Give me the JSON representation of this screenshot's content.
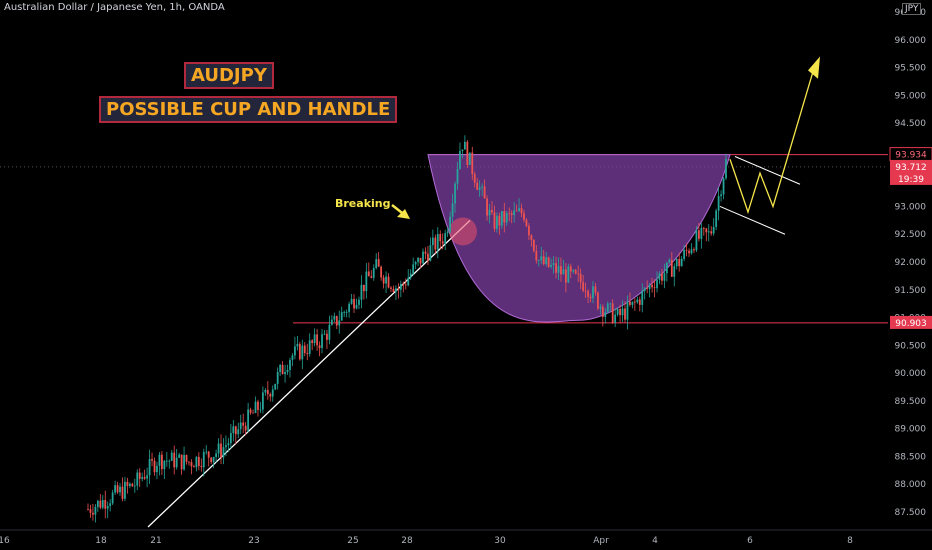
{
  "header": {
    "title": "Australian Dollar / Japanese Yen, 1h, OANDA"
  },
  "currency_badge": "JPY",
  "annotations": {
    "title_box": "AUDJPY",
    "subtitle_box": "POSSIBLE CUP AND HANDLE",
    "breaking_label": "Breaking"
  },
  "price_badges": {
    "resistance": "93.934",
    "current": "93.712",
    "countdown": "19:39",
    "support": "90.903"
  },
  "colors": {
    "up": "#26a69a",
    "down": "#ef5350",
    "cup_fill": "#7b3fa0",
    "level_line": "#e53950",
    "projection": "#f5e54a",
    "trendline": "#ffffff"
  },
  "chart_data": {
    "type": "candlestick",
    "y_axis": {
      "ticks": [
        "96.500",
        "96.000",
        "95.500",
        "95.000",
        "94.500",
        "93.000",
        "92.500",
        "92.000",
        "91.500",
        "91.000",
        "90.500",
        "90.000",
        "89.500",
        "89.000",
        "88.500",
        "88.000",
        "87.500"
      ],
      "range": [
        87.3,
        96.7
      ]
    },
    "x_axis": {
      "ticks": [
        "16",
        "18",
        "21",
        "23",
        "25",
        "28",
        "30",
        "Apr",
        "4",
        "6",
        "8"
      ]
    },
    "levels": {
      "resistance": 93.934,
      "support": 90.903
    },
    "price_path": [
      [
        0,
        87.55
      ],
      [
        0.06,
        88.0
      ],
      [
        0.09,
        88.45
      ],
      [
        0.13,
        88.4
      ],
      [
        0.17,
        88.6
      ],
      [
        0.22,
        89.4
      ],
      [
        0.26,
        90.3
      ],
      [
        0.3,
        90.6
      ],
      [
        0.34,
        91.3
      ],
      [
        0.37,
        91.9
      ],
      [
        0.4,
        91.5
      ],
      [
        0.43,
        92.1
      ],
      [
        0.46,
        92.5
      ],
      [
        0.48,
        94.2
      ],
      [
        0.52,
        92.7
      ],
      [
        0.56,
        92.9
      ],
      [
        0.58,
        92.0
      ],
      [
        0.61,
        91.8
      ],
      [
        0.64,
        91.6
      ],
      [
        0.66,
        91.2
      ],
      [
        0.68,
        91.0
      ],
      [
        0.7,
        91.2
      ],
      [
        0.73,
        91.7
      ],
      [
        0.76,
        92.0
      ],
      [
        0.78,
        92.4
      ],
      [
        0.8,
        92.5
      ],
      [
        0.82,
        93.8
      ]
    ],
    "projection_path": [
      [
        93.9
      ],
      [
        92.9
      ],
      [
        93.6
      ],
      [
        93.0
      ],
      [
        95.5
      ]
    ]
  }
}
